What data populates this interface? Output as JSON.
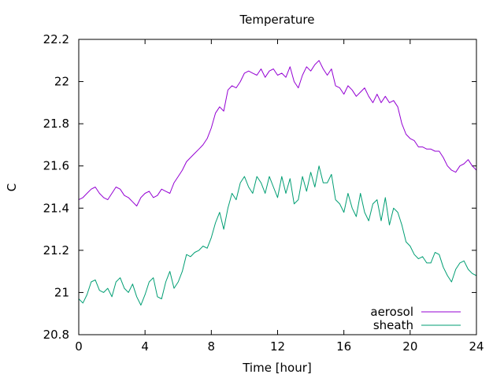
{
  "chart_data": {
    "type": "line",
    "title": "Temperature",
    "xlabel": "Time [hour]",
    "ylabel": "C",
    "xlim": [
      0,
      24
    ],
    "ylim": [
      20.8,
      22.2
    ],
    "x_ticks": [
      0,
      4,
      8,
      12,
      16,
      20,
      24
    ],
    "y_ticks": [
      20.8,
      21,
      21.2,
      21.4,
      21.6,
      21.8,
      22,
      22.2
    ],
    "grid": false,
    "legend_position": "bottom-right",
    "series": [
      {
        "name": "aerosol",
        "color": "#9400d3",
        "x": [
          0,
          0.25,
          0.5,
          0.75,
          1,
          1.25,
          1.5,
          1.75,
          2,
          2.25,
          2.5,
          2.75,
          3,
          3.25,
          3.5,
          3.75,
          4,
          4.25,
          4.5,
          4.75,
          5,
          5.25,
          5.5,
          5.75,
          6,
          6.25,
          6.5,
          6.75,
          7,
          7.25,
          7.5,
          7.75,
          8,
          8.25,
          8.5,
          8.75,
          9,
          9.25,
          9.5,
          9.75,
          10,
          10.25,
          10.5,
          10.75,
          11,
          11.25,
          11.5,
          11.75,
          12,
          12.25,
          12.5,
          12.75,
          13,
          13.25,
          13.5,
          13.75,
          14,
          14.25,
          14.5,
          14.75,
          15,
          15.25,
          15.5,
          15.75,
          16,
          16.25,
          16.5,
          16.75,
          17,
          17.25,
          17.5,
          17.75,
          18,
          18.25,
          18.5,
          18.75,
          19,
          19.25,
          19.5,
          19.75,
          20,
          20.25,
          20.5,
          20.75,
          21,
          21.25,
          21.5,
          21.75,
          22,
          22.25,
          22.5,
          22.75,
          23,
          23.25,
          23.5,
          23.75,
          24
        ],
        "values": [
          21.44,
          21.45,
          21.47,
          21.49,
          21.5,
          21.47,
          21.45,
          21.44,
          21.47,
          21.5,
          21.49,
          21.46,
          21.45,
          21.43,
          21.41,
          21.45,
          21.47,
          21.48,
          21.45,
          21.46,
          21.49,
          21.48,
          21.47,
          21.52,
          21.55,
          21.58,
          21.62,
          21.64,
          21.66,
          21.68,
          21.7,
          21.73,
          21.78,
          21.85,
          21.88,
          21.86,
          21.96,
          21.98,
          21.97,
          22.0,
          22.04,
          22.05,
          22.04,
          22.03,
          22.06,
          22.02,
          22.05,
          22.06,
          22.03,
          22.04,
          22.02,
          22.07,
          22.0,
          21.97,
          22.03,
          22.07,
          22.05,
          22.08,
          22.1,
          22.06,
          22.03,
          22.06,
          21.98,
          21.97,
          21.94,
          21.98,
          21.96,
          21.93,
          21.95,
          21.97,
          21.93,
          21.9,
          21.94,
          21.9,
          21.93,
          21.9,
          21.91,
          21.88,
          21.8,
          21.75,
          21.73,
          21.72,
          21.69,
          21.69,
          21.68,
          21.68,
          21.67,
          21.67,
          21.64,
          21.6,
          21.58,
          21.57,
          21.6,
          21.61,
          21.63,
          21.6,
          21.58
        ]
      },
      {
        "name": "sheath",
        "color": "#009e73",
        "x": [
          0,
          0.25,
          0.5,
          0.75,
          1,
          1.25,
          1.5,
          1.75,
          2,
          2.25,
          2.5,
          2.75,
          3,
          3.25,
          3.5,
          3.75,
          4,
          4.25,
          4.5,
          4.75,
          5,
          5.25,
          5.5,
          5.75,
          6,
          6.25,
          6.5,
          6.75,
          7,
          7.25,
          7.5,
          7.75,
          8,
          8.25,
          8.5,
          8.75,
          9,
          9.25,
          9.5,
          9.75,
          10,
          10.25,
          10.5,
          10.75,
          11,
          11.25,
          11.5,
          11.75,
          12,
          12.25,
          12.5,
          12.75,
          13,
          13.25,
          13.5,
          13.75,
          14,
          14.25,
          14.5,
          14.75,
          15,
          15.25,
          15.5,
          15.75,
          16,
          16.25,
          16.5,
          16.75,
          17,
          17.25,
          17.5,
          17.75,
          18,
          18.25,
          18.5,
          18.75,
          19,
          19.25,
          19.5,
          19.75,
          20,
          20.25,
          20.5,
          20.75,
          21,
          21.25,
          21.5,
          21.75,
          22,
          22.25,
          22.5,
          22.75,
          23,
          23.25,
          23.5,
          23.75,
          24
        ],
        "values": [
          20.97,
          20.95,
          20.99,
          21.05,
          21.06,
          21.01,
          21.0,
          21.02,
          20.98,
          21.05,
          21.07,
          21.02,
          21.0,
          21.04,
          20.98,
          20.94,
          20.99,
          21.05,
          21.07,
          20.98,
          20.97,
          21.05,
          21.1,
          21.02,
          21.05,
          21.1,
          21.18,
          21.17,
          21.19,
          21.2,
          21.22,
          21.21,
          21.26,
          21.33,
          21.38,
          21.3,
          21.4,
          21.47,
          21.44,
          21.52,
          21.55,
          21.5,
          21.47,
          21.55,
          21.52,
          21.47,
          21.55,
          21.5,
          21.45,
          21.55,
          21.47,
          21.54,
          21.42,
          21.44,
          21.55,
          21.48,
          21.57,
          21.5,
          21.6,
          21.52,
          21.52,
          21.56,
          21.44,
          21.42,
          21.38,
          21.47,
          21.4,
          21.36,
          21.47,
          21.38,
          21.34,
          21.42,
          21.44,
          21.34,
          21.45,
          21.32,
          21.4,
          21.38,
          21.32,
          21.24,
          21.22,
          21.18,
          21.16,
          21.17,
          21.14,
          21.14,
          21.19,
          21.18,
          21.12,
          21.08,
          21.05,
          21.11,
          21.14,
          21.15,
          21.11,
          21.09,
          21.08
        ]
      }
    ]
  }
}
